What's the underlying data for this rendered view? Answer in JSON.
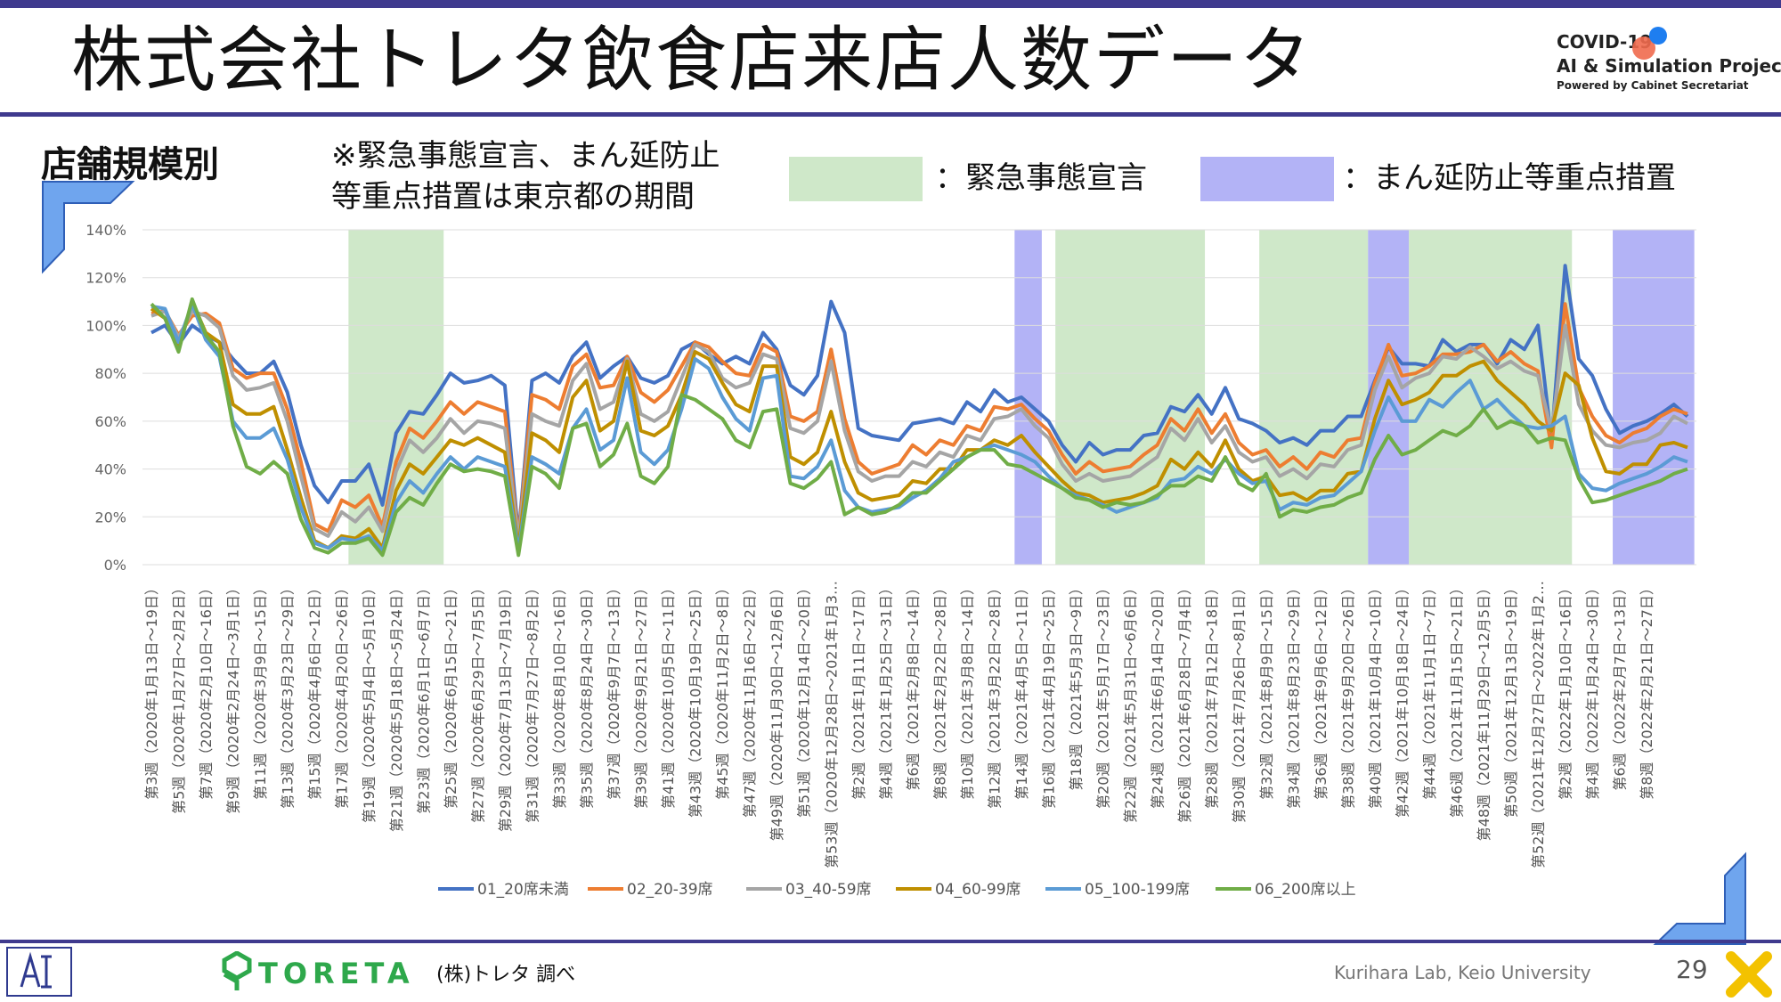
{
  "header": {
    "title": "株式会社トレタ飲食店来店人数データ",
    "logo_line1": "COVID-19",
    "logo_line2": "AI & Simulation Project",
    "logo_line3": "Powered by Cabinet Secretariat"
  },
  "section_label": "店舗規模別",
  "note_line1": "※緊急事態宣言、まん延防止",
  "note_line2": "等重点措置は東京都の期間",
  "legend_key": {
    "emergency_label": "：緊急事態宣言",
    "emergency_color": "#cfe8c9",
    "priority_label": "：まん延防止等重点措置",
    "priority_color": "#b3b3f6"
  },
  "footer": {
    "toreta_logo": "TORETA",
    "source": "(株)トレタ 調べ",
    "lab": "Kurihara Lab, Keio University",
    "page_number": "29"
  },
  "chart_data": {
    "type": "line",
    "title": "",
    "xlabel": "",
    "ylabel": "",
    "ylim": [
      0,
      140
    ],
    "yticks": [
      "0%",
      "20%",
      "40%",
      "60%",
      "80%",
      "100%",
      "120%",
      "140%"
    ],
    "x_tick_labels": [
      "第3週（2020年1月13日～19日）",
      "第5週（2020年1月27日～2月2日）",
      "第7週（2020年2月10日～16日）",
      "第9週（2020年2月24日～3月1日）",
      "第11週（2020年3月9日～15日）",
      "第13週（2020年3月23日～29日）",
      "第15週（2020年4月6日～12日）",
      "第17週（2020年4月20日～26日）",
      "第19週（2020年5月4日～5月10日）",
      "第21週（2020年5月18日～5月24日）",
      "第23週（2020年6月1日～6月7日）",
      "第25週（2020年6月15日～21日）",
      "第27週（2020年6月29日～7月5日）",
      "第29週（2020年7月13日～7月19日）",
      "第31週（2020年7月27日～8月2日）",
      "第33週（2020年8月10日～16日）",
      "第35週（2020年8月24日～30日）",
      "第37週（2020年9月7日～13日）",
      "第39週（2020年9月21日～27日）",
      "第41週（2020年10月5日～11日）",
      "第43週（2020年10月19日～25日）",
      "第45週（2020年11月2日～8日）",
      "第47週（2020年11月16日～22日）",
      "第49週（2020年11月30日～12月6日）",
      "第51週（2020年12月14日～20日）",
      "第53週（2020年12月28日～2021年1月3…",
      "第2週（2021年1月11日～17日）",
      "第4週（2021年1月25日～31日）",
      "第6週（2021年2月8日～14日）",
      "第8週（2021年2月22日～28日）",
      "第10週（2021年3月8日～14日）",
      "第12週（2021年3月22日～28日）",
      "第14週（2021年4月5日～11日）",
      "第16週（2021年4月19日～25日）",
      "第18週（2021年5月3日～9日）",
      "第20週（2021年5月17日～23日）",
      "第22週（2021年5月31日～6月6日）",
      "第24週（2021年6月14日～20日）",
      "第26週（2021年6月28日～7月4日）",
      "第28週（2021年7月12日～18日）",
      "第30週（2021年7月26日～8月1日）",
      "第32週（2021年8月9日～15日）",
      "第34週（2021年8月23日～29日）",
      "第36週（2021年9月6日～12日）",
      "第38週（2021年9月20日～26日）",
      "第40週（2021年10月4日～10日）",
      "第42週（2021年10月18日～24日）",
      "第44週（2021年11月1日～7日）",
      "第46週（2021年11月15日～21日）",
      "第48週（2021年11月29日～12月5日）",
      "第50週（2021年12月13日～19日）",
      "第52週（2021年12月27日～2022年1月2…",
      "第2週（2022年1月10日～16日）",
      "第4週（2022年1月24日～30日）",
      "第6週（2022年2月7日～13日）",
      "第8週（2022年2月21日～27日）"
    ],
    "emergency_periods": [
      [
        15,
        22
      ],
      [
        67,
        78
      ],
      [
        82,
        90
      ],
      [
        93,
        105
      ]
    ],
    "priority_periods": [
      [
        64,
        66
      ],
      [
        90,
        93
      ],
      [
        108,
        114
      ]
    ],
    "series": [
      {
        "name": "01_20席未満",
        "color": "#4472c4",
        "values": [
          97,
          100,
          92,
          100,
          96,
          93,
          86,
          80,
          80,
          85,
          72,
          50,
          33,
          26,
          35,
          35,
          42,
          25,
          55,
          64,
          63,
          71,
          80,
          76,
          77,
          79,
          75,
          12,
          77,
          80,
          76,
          87,
          93,
          78,
          83,
          87,
          78,
          76,
          79,
          90,
          93,
          88,
          84,
          87,
          84,
          97,
          90,
          75,
          71,
          79,
          110,
          97,
          57,
          54,
          53,
          52,
          59,
          60,
          61,
          59,
          68,
          64,
          73,
          68,
          70,
          65,
          60,
          50,
          43,
          51,
          46,
          48,
          48,
          54,
          55,
          66,
          64,
          71,
          63,
          74,
          61,
          59,
          56,
          51,
          53,
          50,
          56,
          56,
          62,
          62,
          77,
          91,
          84,
          84,
          83,
          94,
          89,
          92,
          92,
          84,
          94,
          90,
          100,
          52,
          125,
          86,
          79,
          65,
          55,
          58,
          60,
          63,
          67,
          62
        ]
      },
      {
        "name": "02_20-39席",
        "color": "#ed7d31",
        "values": [
          105,
          106,
          96,
          104,
          105,
          101,
          82,
          78,
          80,
          80,
          65,
          43,
          17,
          14,
          27,
          24,
          29,
          16,
          43,
          57,
          53,
          60,
          68,
          63,
          68,
          66,
          64,
          11,
          71,
          69,
          65,
          83,
          88,
          74,
          75,
          87,
          72,
          68,
          73,
          83,
          93,
          91,
          85,
          80,
          79,
          92,
          89,
          62,
          60,
          64,
          90,
          61,
          43,
          38,
          40,
          42,
          50,
          46,
          52,
          50,
          58,
          56,
          66,
          65,
          67,
          61,
          56,
          46,
          38,
          43,
          39,
          40,
          41,
          46,
          50,
          61,
          56,
          65,
          55,
          63,
          51,
          46,
          48,
          41,
          45,
          40,
          47,
          45,
          52,
          53,
          76,
          92,
          79,
          80,
          83,
          88,
          88,
          89,
          92,
          85,
          89,
          84,
          81,
          49,
          109,
          74,
          62,
          54,
          51,
          55,
          57,
          62,
          65,
          63
        ]
      },
      {
        "name": "03_40-59席",
        "color": "#a5a5a5",
        "values": [
          104,
          106,
          95,
          106,
          104,
          99,
          79,
          73,
          74,
          76,
          60,
          37,
          15,
          12,
          22,
          18,
          24,
          14,
          39,
          52,
          47,
          53,
          61,
          55,
          60,
          59,
          57,
          10,
          63,
          60,
          58,
          77,
          84,
          65,
          68,
          86,
          63,
          60,
          64,
          78,
          92,
          89,
          78,
          74,
          76,
          88,
          86,
          57,
          55,
          60,
          85,
          56,
          39,
          35,
          37,
          37,
          43,
          41,
          47,
          45,
          54,
          52,
          61,
          62,
          65,
          58,
          53,
          42,
          35,
          38,
          35,
          36,
          37,
          41,
          45,
          57,
          52,
          61,
          51,
          58,
          47,
          43,
          45,
          37,
          40,
          36,
          42,
          41,
          48,
          50,
          73,
          87,
          74,
          78,
          80,
          87,
          86,
          91,
          87,
          82,
          85,
          81,
          79,
          56,
          100,
          67,
          56,
          50,
          49,
          51,
          52,
          55,
          62,
          59
        ]
      },
      {
        "name": "04_60-99席",
        "color": "#bf8f00",
        "values": [
          107,
          103,
          90,
          110,
          97,
          93,
          67,
          63,
          63,
          66,
          48,
          28,
          10,
          7,
          12,
          11,
          15,
          7,
          31,
          42,
          38,
          45,
          52,
          50,
          53,
          50,
          47,
          7,
          55,
          52,
          47,
          70,
          77,
          56,
          60,
          85,
          56,
          54,
          58,
          71,
          89,
          86,
          76,
          67,
          64,
          83,
          83,
          45,
          42,
          47,
          64,
          43,
          30,
          27,
          28,
          29,
          35,
          34,
          40,
          40,
          48,
          48,
          52,
          50,
          54,
          47,
          41,
          35,
          30,
          29,
          26,
          27,
          28,
          30,
          33,
          44,
          40,
          47,
          41,
          52,
          40,
          35,
          37,
          29,
          30,
          27,
          31,
          31,
          38,
          39,
          61,
          77,
          67,
          69,
          72,
          79,
          79,
          83,
          85,
          77,
          72,
          67,
          60,
          56,
          80,
          75,
          53,
          39,
          38,
          42,
          42,
          50,
          51,
          49
        ]
      },
      {
        "name": "05_100-199席",
        "color": "#5b9bd5",
        "values": [
          108,
          107,
          93,
          109,
          94,
          87,
          60,
          53,
          53,
          57,
          44,
          24,
          9,
          7,
          11,
          10,
          12,
          6,
          26,
          35,
          30,
          38,
          45,
          40,
          45,
          43,
          41,
          6,
          45,
          42,
          38,
          57,
          65,
          48,
          52,
          78,
          47,
          42,
          48,
          65,
          86,
          82,
          70,
          61,
          56,
          78,
          79,
          37,
          36,
          41,
          52,
          31,
          24,
          22,
          23,
          24,
          28,
          31,
          36,
          43,
          45,
          48,
          50,
          48,
          46,
          43,
          37,
          32,
          29,
          27,
          25,
          22,
          24,
          26,
          28,
          35,
          36,
          41,
          38,
          44,
          38,
          34,
          35,
          23,
          26,
          25,
          28,
          29,
          34,
          39,
          56,
          70,
          60,
          60,
          69,
          66,
          72,
          77,
          65,
          69,
          63,
          58,
          57,
          58,
          62,
          38,
          32,
          31,
          34,
          36,
          38,
          41,
          45,
          43
        ]
      },
      {
        "name": "06_200席以上",
        "color": "#70ad47",
        "values": [
          109,
          103,
          89,
          111,
          96,
          89,
          58,
          41,
          38,
          43,
          38,
          19,
          7,
          5,
          9,
          9,
          11,
          4,
          22,
          28,
          25,
          34,
          42,
          39,
          40,
          39,
          37,
          4,
          41,
          38,
          32,
          57,
          59,
          41,
          46,
          59,
          37,
          34,
          41,
          71,
          69,
          65,
          61,
          52,
          49,
          64,
          65,
          34,
          32,
          36,
          43,
          21,
          24,
          21,
          22,
          25,
          30,
          30,
          35,
          40,
          45,
          48,
          48,
          42,
          41,
          38,
          35,
          32,
          28,
          27,
          24,
          26,
          25,
          26,
          29,
          33,
          33,
          37,
          35,
          45,
          34,
          31,
          38,
          20,
          23,
          22,
          24,
          25,
          28,
          30,
          44,
          54,
          46,
          48,
          52,
          56,
          54,
          58,
          65,
          57,
          60,
          58,
          51,
          53,
          52,
          36,
          26,
          27,
          29,
          31,
          33,
          35,
          38,
          40
        ]
      }
    ]
  }
}
